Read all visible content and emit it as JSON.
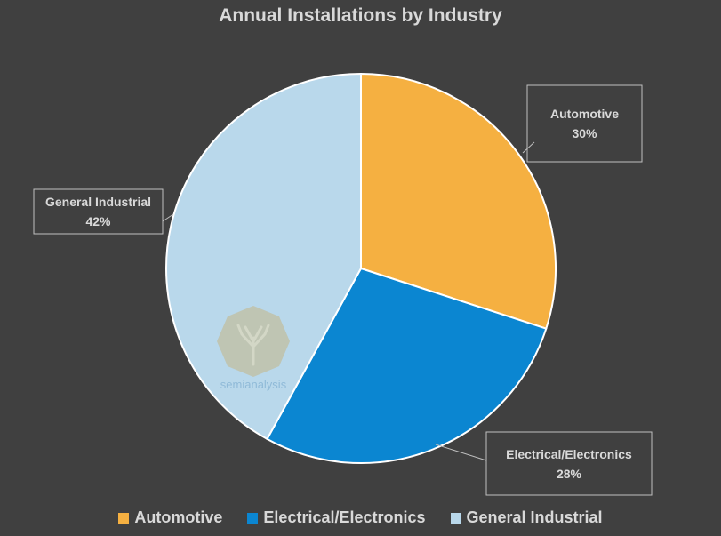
{
  "chart_data": {
    "type": "pie",
    "title": "Annual Installations by Industry",
    "slices": [
      {
        "label": "Automotive",
        "value": 30,
        "display": "30%",
        "color": "#f5b041"
      },
      {
        "label": "Electrical/Electronics",
        "value": 28,
        "display": "28%",
        "color": "#0b86d1"
      },
      {
        "label": "General Industrial",
        "value": 42,
        "display": "42%",
        "color": "#b9d8eb"
      }
    ],
    "start_angle_deg": 0,
    "direction": "clockwise",
    "legend_position": "bottom"
  },
  "colors": {
    "background": "#404040",
    "text": "#d9d9d9",
    "slice_border": "#ffffff",
    "callout_border": "#bfbfbf"
  },
  "watermark": {
    "brand": "semianalysis"
  }
}
